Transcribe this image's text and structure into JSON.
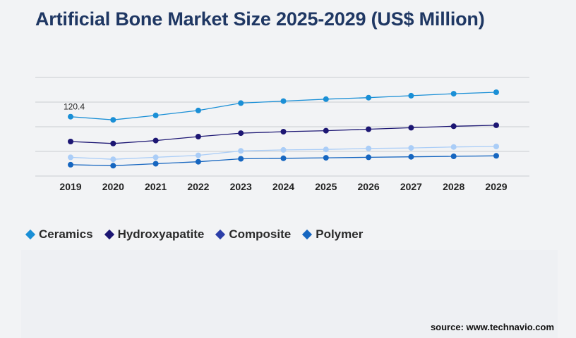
{
  "title": "Artificial Bone Market Size 2025-2029 (US$ Million)",
  "source": "source: www.technavio.com",
  "chart_data": {
    "type": "line",
    "title": "Artificial Bone Market Size 2025-2029 (US$ Million)",
    "xlabel": "",
    "ylabel": "",
    "grid": true,
    "legend_position": "bottom-left",
    "categories": [
      "2019",
      "2020",
      "2021",
      "2022",
      "2023",
      "2024",
      "2025",
      "2026",
      "2027",
      "2028",
      "2029"
    ],
    "ylim": [
      0,
      200
    ],
    "annotations": [
      {
        "series": "Ceramics",
        "category": "2019",
        "text": "120.4"
      }
    ],
    "series": [
      {
        "name": "Ceramics",
        "color": "#1a8fd6",
        "values": [
          120.4,
          114,
          123,
          133,
          148,
          152,
          156,
          159,
          163,
          167,
          170
        ]
      },
      {
        "name": "Hydroxyapatite",
        "color": "#1c1673",
        "values": [
          70,
          66,
          72,
          80,
          87,
          90,
          92,
          95,
          98,
          101,
          103
        ]
      },
      {
        "name": "Composite",
        "color": "#aacdf7",
        "values": [
          38,
          34,
          38,
          42,
          51,
          53,
          54,
          56,
          57,
          59,
          60
        ]
      },
      {
        "name": "Polymer",
        "color": "#1666c0",
        "values": [
          23,
          21,
          25,
          29,
          35,
          36,
          37,
          38,
          39,
          40,
          41
        ]
      }
    ]
  },
  "legend": [
    {
      "label": "Ceramics",
      "color": "#1a8fd6"
    },
    {
      "label": "Hydroxyapatite",
      "color": "#1c1673"
    },
    {
      "label": "Composite",
      "color": "#2c3ea8"
    },
    {
      "label": "Polymer",
      "color": "#1666c0"
    }
  ]
}
